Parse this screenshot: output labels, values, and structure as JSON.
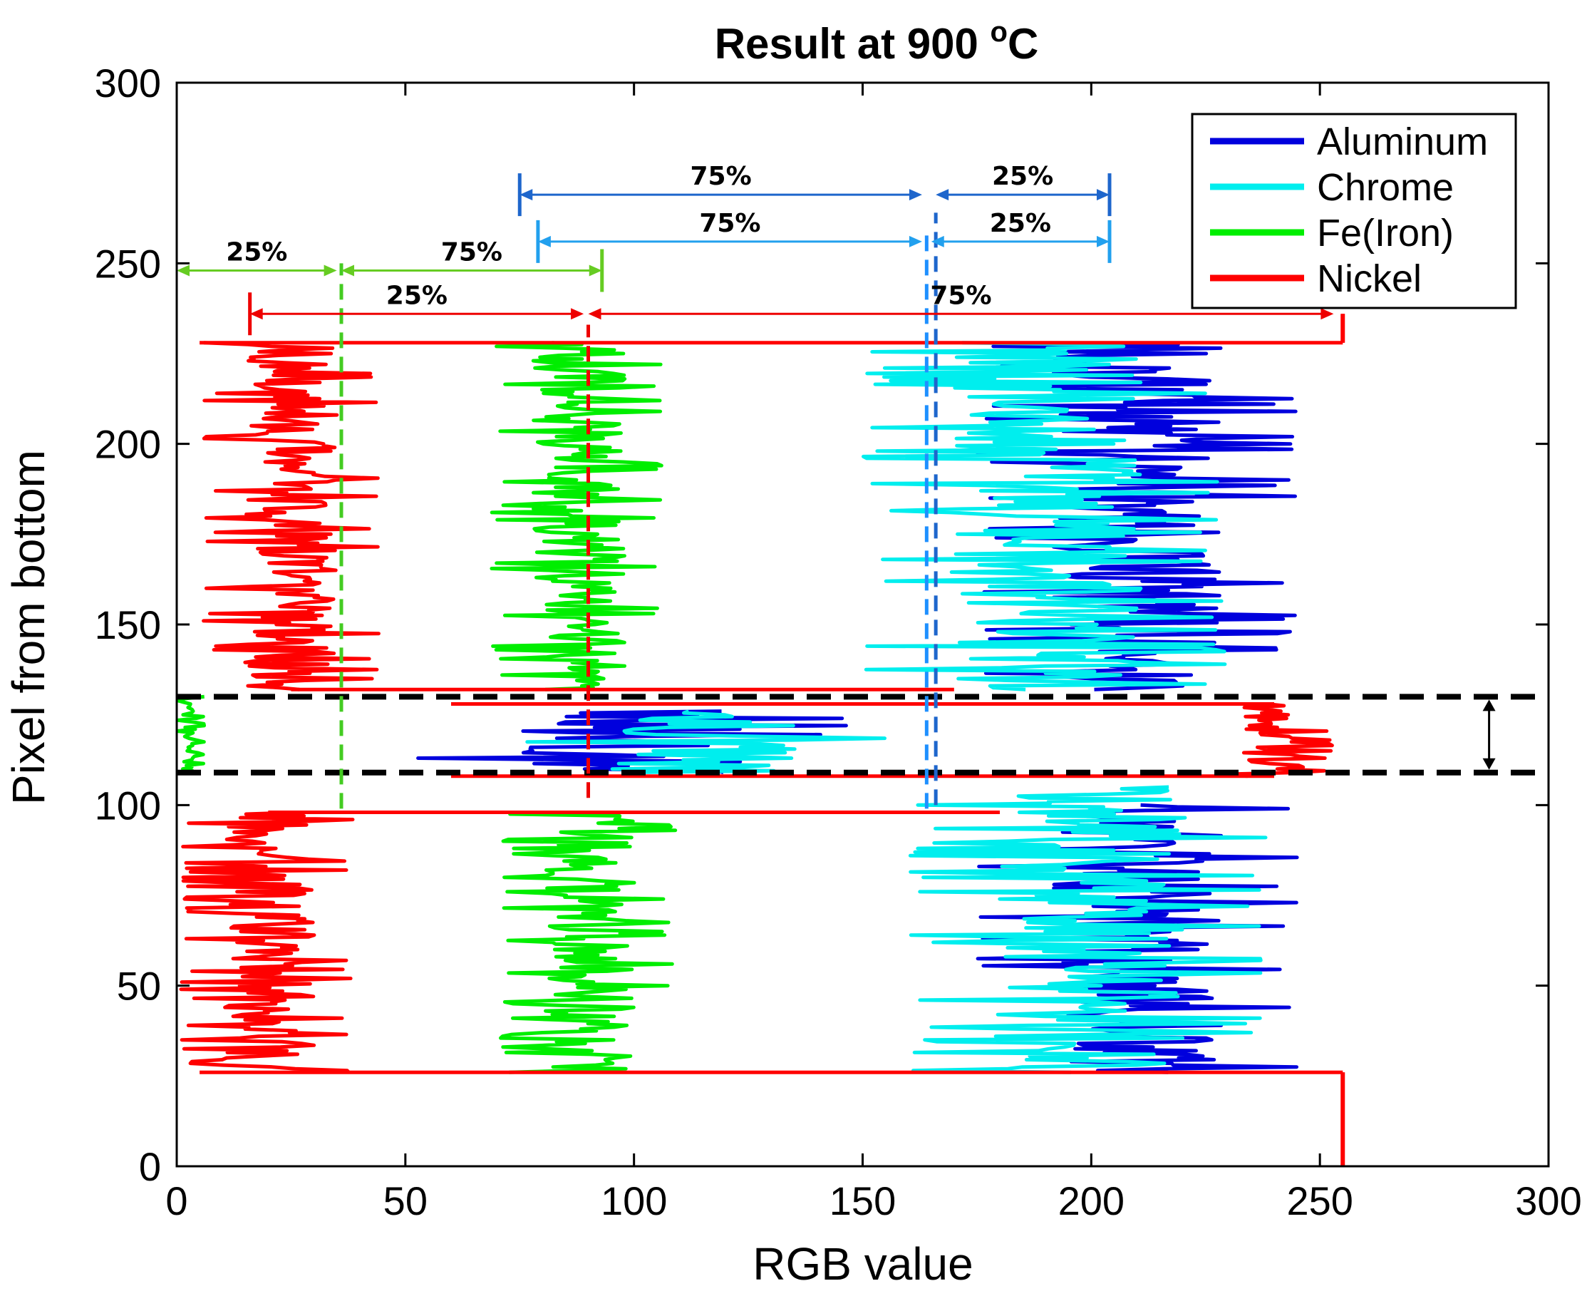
{
  "chart_data": {
    "type": "line",
    "title_prefix": "Result at 900 ",
    "title_unit_sup": "o",
    "title_unit": "C",
    "xlabel": "RGB value",
    "ylabel": "Pixel from bottom",
    "xlim": [
      0,
      300
    ],
    "ylim": [
      0,
      300
    ],
    "xticks": [
      "0",
      "50",
      "100",
      "150",
      "200",
      "250",
      "300"
    ],
    "yticks": [
      "0",
      "50",
      "100",
      "150",
      "200",
      "250",
      "300"
    ],
    "grid": false,
    "legend_position": "top-right",
    "series": [
      {
        "name": "Aluminum",
        "color": "#0000dd",
        "segments": [
          {
            "y": [
              26,
              100
            ],
            "center": 210,
            "spread": 22
          },
          {
            "y": [
              109,
              126
            ],
            "center": 100,
            "spread": 30
          },
          {
            "y": [
              132,
              228
            ],
            "center": 210,
            "spread": 22
          }
        ]
      },
      {
        "name": "Chrome",
        "color": "#00eeee",
        "segments": [
          {
            "y": [
              26,
              105
            ],
            "center": 200,
            "spread": 25
          },
          {
            "y": [
              109,
              126
            ],
            "center": 115,
            "spread": 25
          },
          {
            "y": [
              132,
              228
            ],
            "center": 190,
            "spread": 25
          }
        ]
      },
      {
        "name": "Fe(Iron)",
        "color": "#00ee00",
        "segments": [
          {
            "y": [
              26,
              98
            ],
            "center": 90,
            "spread": 12
          },
          {
            "y": [
              109,
              130
            ],
            "center": 3,
            "spread": 2
          },
          {
            "y": [
              132,
              228
            ],
            "center": 88,
            "spread": 12
          }
        ]
      },
      {
        "name": "Nickel",
        "color": "#ff0000",
        "segments": [
          {
            "y": [
              0,
              26
            ],
            "center": 255,
            "spread": 0
          },
          {
            "y": [
              26,
              98
            ],
            "center": 20,
            "spread": 12
          },
          {
            "y": [
              108,
              128
            ],
            "center": 240,
            "spread": 8
          },
          {
            "y": [
              132,
              228
            ],
            "center": 25,
            "spread": 12
          },
          {
            "y": [
              228,
              236
            ],
            "center": 255,
            "spread": 0
          }
        ]
      }
    ],
    "annotations": {
      "dashed_band": {
        "y_low": 109,
        "y_high": 130,
        "arrow_x": 287
      },
      "vlines": [
        {
          "x": 36,
          "y": [
            99,
            250
          ],
          "color": "#44cc22"
        },
        {
          "x": 90,
          "y": [
            102,
            233
          ],
          "color": "#ee0000"
        },
        {
          "x": 164,
          "y": [
            99,
            258
          ],
          "color": "#1e90ff"
        },
        {
          "x": 166,
          "y": [
            100,
            264
          ],
          "color": "#1e66cc"
        }
      ],
      "spans": [
        {
          "x1": 75,
          "x2": 163,
          "y": 269,
          "label": "75%",
          "color": "#1e66cc",
          "cap_left": true
        },
        {
          "x1": 166,
          "x2": 204,
          "y": 269,
          "label": "25%",
          "color": "#1e66cc",
          "cap_right": true
        },
        {
          "x1": 79,
          "x2": 163,
          "y": 256,
          "label": "75%",
          "color": "#22a0ee",
          "cap_left": true
        },
        {
          "x1": 165,
          "x2": 204,
          "y": 256,
          "label": "25%",
          "color": "#22a0ee",
          "cap_right": true
        },
        {
          "x1": 0,
          "x2": 35,
          "y": 248,
          "label": "25%",
          "color": "#66cc22"
        },
        {
          "x1": 36,
          "x2": 93,
          "y": 248,
          "label": "75%",
          "color": "#66cc22",
          "cap_right": true
        },
        {
          "x1": 16,
          "x2": 89,
          "y": 236,
          "label": "25%",
          "color": "#ee0000",
          "cap_left": true
        },
        {
          "x1": 90,
          "x2": 253,
          "y": 236,
          "label": "75%",
          "color": "#ee0000"
        }
      ]
    }
  }
}
